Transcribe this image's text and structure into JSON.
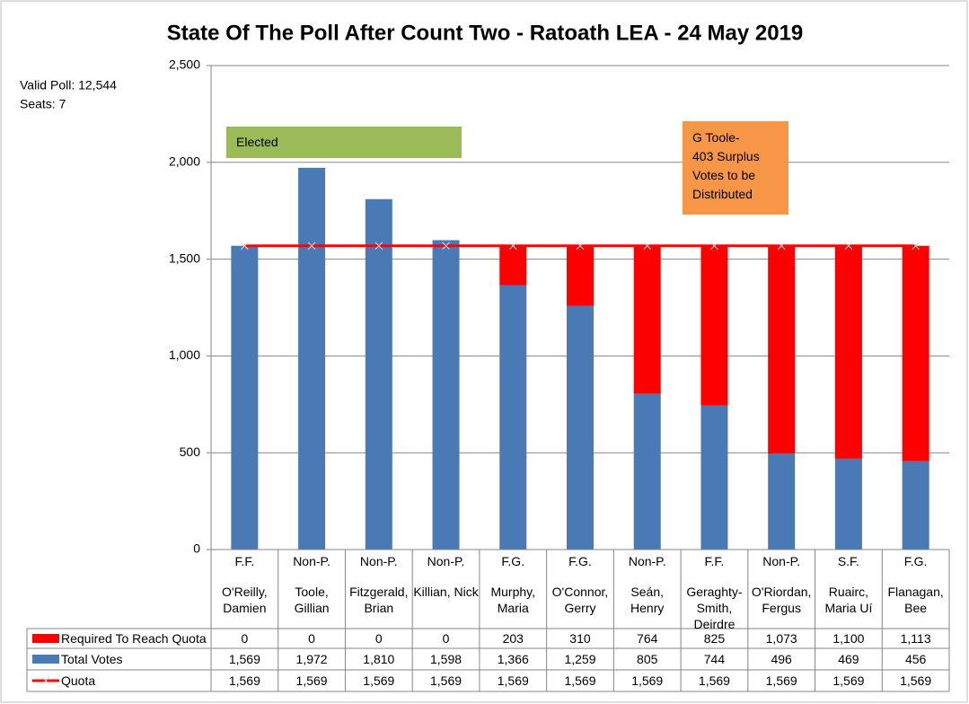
{
  "chart_data": {
    "type": "bar",
    "title": "State Of The Poll After Count Two - Ratoath LEA - 24 May 2019",
    "notes": [
      "Valid Poll: 12,544",
      "Seats: 7"
    ],
    "annotations": [
      {
        "lines": [
          "Elected"
        ],
        "color": "#9bbb59"
      },
      {
        "lines": [
          "G Toole-",
          "403 Surplus",
          "Votes to be",
          "Distributed"
        ],
        "color": "#f79646"
      }
    ],
    "parties": [
      "F.F.",
      "Non-P.",
      "Non-P.",
      "Non-P.",
      "F.G.",
      "F.G.",
      "Non-P.",
      "F.F.",
      "Non-P.",
      "S.F.",
      "F.G."
    ],
    "categories": [
      "O'Reilly, Damien",
      "Toole, Gillian",
      "Fitzgerald, Brian",
      "Killian, Nick",
      "Murphy, Maria",
      "O'Connor, Gerry",
      "Seán, Henry",
      "Geraghty-Smith, Deirdre",
      "O'Riordan, Fergus",
      "Ruairc, Maria Uí",
      "Flanagan, Bee"
    ],
    "series": [
      {
        "name": "Required To Reach Quota",
        "color": "#ff0000",
        "values": [
          0,
          0,
          0,
          0,
          203,
          310,
          764,
          825,
          1073,
          1100,
          1113
        ],
        "value_labels": [
          "0",
          "0",
          "0",
          "0",
          "203",
          "310",
          "764",
          "825",
          "1,073",
          "1,100",
          "1,113"
        ]
      },
      {
        "name": "Total Votes",
        "color": "#4a7ab5",
        "values": [
          1569,
          1972,
          1810,
          1598,
          1366,
          1259,
          805,
          744,
          496,
          469,
          456
        ],
        "value_labels": [
          "1,569",
          "1,972",
          "1,810",
          "1,598",
          "1,366",
          "1,259",
          "805",
          "744",
          "496",
          "469",
          "456"
        ]
      },
      {
        "name": "Quota",
        "color": "#ff0000",
        "values": [
          1569,
          1569,
          1569,
          1569,
          1569,
          1569,
          1569,
          1569,
          1569,
          1569,
          1569
        ],
        "value_labels": [
          "1,569",
          "1,569",
          "1,569",
          "1,569",
          "1,569",
          "1,569",
          "1,569",
          "1,569",
          "1,569",
          "1,569",
          "1,569"
        ]
      }
    ],
    "ylim": [
      0,
      2500
    ],
    "yticks": [
      0,
      {
        "value": 500,
        "label": "500"
      },
      {
        "value": 1000,
        "label": "1,000"
      },
      {
        "value": 1500,
        "label": "1,500"
      },
      {
        "value": 2000,
        "label": "2,000"
      },
      {
        "value": 2500,
        "label": "2,500"
      }
    ],
    "grid": true
  }
}
